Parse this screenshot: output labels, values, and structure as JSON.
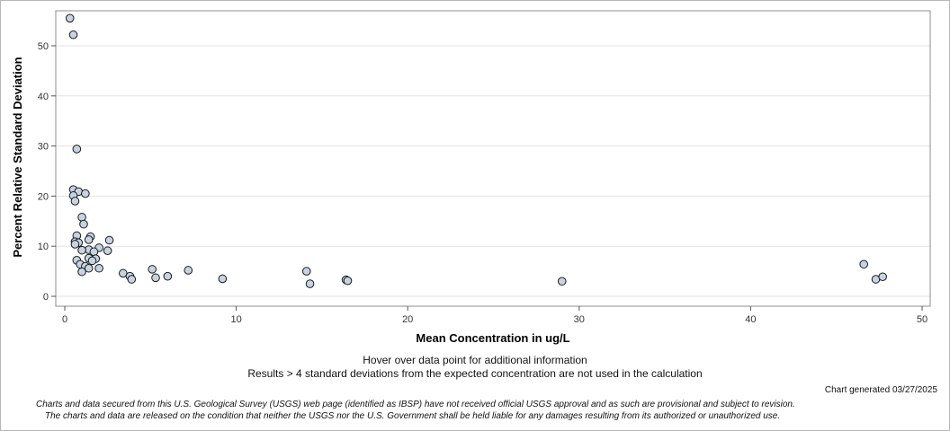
{
  "chart_data": {
    "type": "scatter",
    "xlabel": "Mean Concentration in ug/L",
    "ylabel": "Percent Relative Standard Deviation",
    "xlim": [
      0,
      50
    ],
    "ylim": [
      0,
      57
    ],
    "xticks": [
      0,
      10,
      20,
      30,
      40,
      50
    ],
    "yticks": [
      0,
      10,
      20,
      30,
      40,
      50
    ],
    "grid": true,
    "marker_fill": "#c6d3e3",
    "marker_stroke": "#1a1a1a",
    "points": [
      {
        "x": 0.3,
        "y": 55.5
      },
      {
        "x": 0.5,
        "y": 52.2
      },
      {
        "x": 0.7,
        "y": 29.4
      },
      {
        "x": 0.5,
        "y": 21.3
      },
      {
        "x": 0.8,
        "y": 20.9
      },
      {
        "x": 1.2,
        "y": 20.5
      },
      {
        "x": 0.5,
        "y": 20.1
      },
      {
        "x": 0.6,
        "y": 19.0
      },
      {
        "x": 1.0,
        "y": 15.8
      },
      {
        "x": 1.1,
        "y": 14.4
      },
      {
        "x": 0.7,
        "y": 12.1
      },
      {
        "x": 1.5,
        "y": 11.9
      },
      {
        "x": 1.4,
        "y": 11.3
      },
      {
        "x": 2.6,
        "y": 11.2
      },
      {
        "x": 0.6,
        "y": 10.9
      },
      {
        "x": 0.8,
        "y": 10.7
      },
      {
        "x": 0.6,
        "y": 10.4
      },
      {
        "x": 2.0,
        "y": 9.7
      },
      {
        "x": 1.4,
        "y": 9.3
      },
      {
        "x": 2.5,
        "y": 9.1
      },
      {
        "x": 1.0,
        "y": 9.2
      },
      {
        "x": 1.7,
        "y": 8.9
      },
      {
        "x": 1.4,
        "y": 7.6
      },
      {
        "x": 1.8,
        "y": 7.5
      },
      {
        "x": 1.6,
        "y": 7.1
      },
      {
        "x": 0.7,
        "y": 7.2
      },
      {
        "x": 0.9,
        "y": 6.4
      },
      {
        "x": 1.2,
        "y": 6.0
      },
      {
        "x": 1.4,
        "y": 5.6
      },
      {
        "x": 2.0,
        "y": 5.6
      },
      {
        "x": 1.0,
        "y": 4.9
      },
      {
        "x": 3.4,
        "y": 4.6
      },
      {
        "x": 3.8,
        "y": 4.0
      },
      {
        "x": 3.9,
        "y": 3.4
      },
      {
        "x": 5.1,
        "y": 5.4
      },
      {
        "x": 5.3,
        "y": 3.7
      },
      {
        "x": 6.0,
        "y": 4.0
      },
      {
        "x": 7.2,
        "y": 5.2
      },
      {
        "x": 9.2,
        "y": 3.5
      },
      {
        "x": 14.1,
        "y": 5.0
      },
      {
        "x": 14.3,
        "y": 2.5
      },
      {
        "x": 16.4,
        "y": 3.3
      },
      {
        "x": 16.5,
        "y": 3.1
      },
      {
        "x": 29.0,
        "y": 3.0
      },
      {
        "x": 46.6,
        "y": 6.4
      },
      {
        "x": 47.3,
        "y": 3.4
      },
      {
        "x": 47.7,
        "y": 3.9
      }
    ]
  },
  "notes": {
    "hover": "Hover over data point for additional information",
    "results": "Results > 4 standard deviations from the expected concentration are not used in the calculation",
    "generated": "Chart generated 03/27/2025",
    "disclaimer_1": "Charts and data secured from this U.S. Geological Survey (USGS) web page (identified as IBSP) have not received official USGS approval and as such are provisional and subject to revision.",
    "disclaimer_2": "The charts and data are released on the condition that neither the USGS nor the U.S. Government shall be held liable for any damages resulting from its authorized or unauthorized use."
  }
}
